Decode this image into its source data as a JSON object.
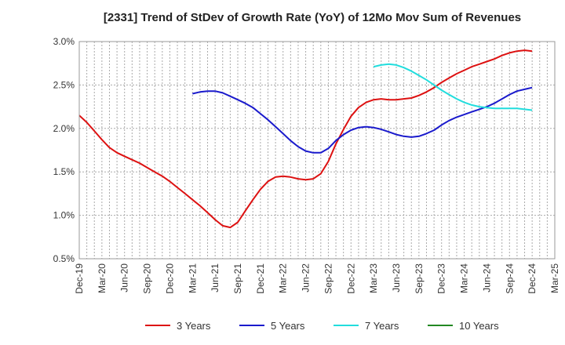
{
  "chart_data": {
    "type": "line",
    "title": "[2331]  Trend of StDev of Growth Rate (YoY) of 12Mo Mov Sum of Revenues",
    "xlabel": "",
    "ylabel": "",
    "ylim": [
      0.5,
      3.0
    ],
    "yticks": [
      0.5,
      1.0,
      1.5,
      2.0,
      2.5,
      3.0
    ],
    "ytick_labels": [
      "0.5%",
      "1.0%",
      "1.5%",
      "2.0%",
      "2.5%",
      "3.0%"
    ],
    "x_range": [
      0,
      21
    ],
    "x_tick_labels": [
      "Dec-19",
      "Mar-20",
      "Jun-20",
      "Sep-20",
      "Dec-20",
      "Mar-21",
      "Jun-21",
      "Sep-21",
      "Dec-21",
      "Mar-22",
      "Jun-22",
      "Sep-22",
      "Dec-22",
      "Mar-23",
      "Jun-23",
      "Sep-23",
      "Dec-23",
      "Mar-24",
      "Jun-24",
      "Sep-24",
      "Dec-24",
      "Mar-25"
    ],
    "grid": true,
    "legend_position": "bottom",
    "series": [
      {
        "name": "3 Years",
        "color": "#dd1111",
        "points": [
          [
            0,
            2.15
          ],
          [
            0.33,
            2.07
          ],
          [
            0.67,
            1.97
          ],
          [
            1,
            1.87
          ],
          [
            1.33,
            1.78
          ],
          [
            1.67,
            1.72
          ],
          [
            2,
            1.68
          ],
          [
            2.33,
            1.64
          ],
          [
            2.67,
            1.6
          ],
          [
            3,
            1.55
          ],
          [
            3.33,
            1.5
          ],
          [
            3.67,
            1.45
          ],
          [
            4,
            1.39
          ],
          [
            4.33,
            1.32
          ],
          [
            4.67,
            1.25
          ],
          [
            5,
            1.18
          ],
          [
            5.33,
            1.11
          ],
          [
            5.67,
            1.03
          ],
          [
            6,
            0.95
          ],
          [
            6.33,
            0.88
          ],
          [
            6.67,
            0.86
          ],
          [
            7,
            0.92
          ],
          [
            7.33,
            1.05
          ],
          [
            7.67,
            1.18
          ],
          [
            8,
            1.3
          ],
          [
            8.33,
            1.39
          ],
          [
            8.67,
            1.44
          ],
          [
            9,
            1.45
          ],
          [
            9.33,
            1.44
          ],
          [
            9.67,
            1.42
          ],
          [
            10,
            1.41
          ],
          [
            10.33,
            1.42
          ],
          [
            10.67,
            1.48
          ],
          [
            11,
            1.62
          ],
          [
            11.33,
            1.82
          ],
          [
            11.67,
            1.99
          ],
          [
            12,
            2.14
          ],
          [
            12.33,
            2.24
          ],
          [
            12.67,
            2.3
          ],
          [
            13,
            2.33
          ],
          [
            13.33,
            2.34
          ],
          [
            13.67,
            2.33
          ],
          [
            14,
            2.33
          ],
          [
            14.33,
            2.34
          ],
          [
            14.67,
            2.35
          ],
          [
            15,
            2.38
          ],
          [
            15.33,
            2.42
          ],
          [
            15.67,
            2.47
          ],
          [
            16,
            2.53
          ],
          [
            16.33,
            2.58
          ],
          [
            16.67,
            2.63
          ],
          [
            17,
            2.67
          ],
          [
            17.33,
            2.71
          ],
          [
            17.67,
            2.74
          ],
          [
            18,
            2.77
          ],
          [
            18.33,
            2.8
          ],
          [
            18.67,
            2.84
          ],
          [
            19,
            2.87
          ],
          [
            19.33,
            2.89
          ],
          [
            19.67,
            2.9
          ],
          [
            20,
            2.89
          ]
        ]
      },
      {
        "name": "5 Years",
        "color": "#1a1acc",
        "points": [
          [
            5,
            2.4
          ],
          [
            5.33,
            2.42
          ],
          [
            5.67,
            2.43
          ],
          [
            6,
            2.43
          ],
          [
            6.33,
            2.41
          ],
          [
            6.67,
            2.37
          ],
          [
            7,
            2.33
          ],
          [
            7.33,
            2.29
          ],
          [
            7.67,
            2.24
          ],
          [
            8,
            2.17
          ],
          [
            8.33,
            2.1
          ],
          [
            8.67,
            2.02
          ],
          [
            9,
            1.94
          ],
          [
            9.33,
            1.86
          ],
          [
            9.67,
            1.79
          ],
          [
            10,
            1.74
          ],
          [
            10.33,
            1.72
          ],
          [
            10.67,
            1.72
          ],
          [
            11,
            1.77
          ],
          [
            11.33,
            1.86
          ],
          [
            11.67,
            1.93
          ],
          [
            12,
            1.98
          ],
          [
            12.33,
            2.01
          ],
          [
            12.67,
            2.02
          ],
          [
            13,
            2.01
          ],
          [
            13.33,
            1.99
          ],
          [
            13.67,
            1.96
          ],
          [
            14,
            1.93
          ],
          [
            14.33,
            1.91
          ],
          [
            14.67,
            1.9
          ],
          [
            15,
            1.91
          ],
          [
            15.33,
            1.94
          ],
          [
            15.67,
            1.98
          ],
          [
            16,
            2.04
          ],
          [
            16.33,
            2.09
          ],
          [
            16.67,
            2.13
          ],
          [
            17,
            2.16
          ],
          [
            17.33,
            2.19
          ],
          [
            17.67,
            2.22
          ],
          [
            18,
            2.25
          ],
          [
            18.33,
            2.29
          ],
          [
            18.67,
            2.34
          ],
          [
            19,
            2.39
          ],
          [
            19.33,
            2.43
          ],
          [
            19.67,
            2.45
          ],
          [
            20,
            2.47
          ]
        ]
      },
      {
        "name": "7 Years",
        "color": "#22dddd",
        "points": [
          [
            13,
            2.71
          ],
          [
            13.33,
            2.73
          ],
          [
            13.67,
            2.74
          ],
          [
            14,
            2.73
          ],
          [
            14.33,
            2.7
          ],
          [
            14.67,
            2.66
          ],
          [
            15,
            2.61
          ],
          [
            15.33,
            2.56
          ],
          [
            15.67,
            2.5
          ],
          [
            16,
            2.44
          ],
          [
            16.33,
            2.39
          ],
          [
            16.67,
            2.34
          ],
          [
            17,
            2.3
          ],
          [
            17.33,
            2.27
          ],
          [
            17.67,
            2.25
          ],
          [
            18,
            2.24
          ],
          [
            18.33,
            2.23
          ],
          [
            18.67,
            2.23
          ],
          [
            19,
            2.23
          ],
          [
            19.33,
            2.23
          ],
          [
            19.67,
            2.22
          ],
          [
            20,
            2.21
          ]
        ]
      },
      {
        "name": "10 Years",
        "color": "#228822",
        "points": []
      }
    ]
  }
}
